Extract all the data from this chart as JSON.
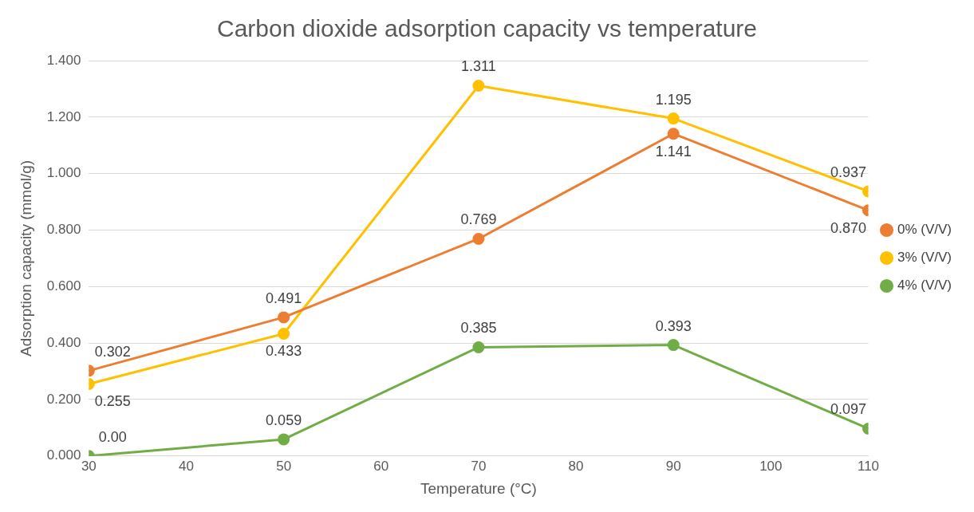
{
  "chart_data": {
    "type": "line",
    "title": "Carbon dioxide adsorption capacity vs temperature",
    "xlabel": "Temperature (°C)",
    "ylabel": "Adsorption capacity (mmol/g)",
    "x": [
      30,
      50,
      70,
      90,
      110
    ],
    "xlim": [
      30,
      110
    ],
    "xticks": [
      30,
      40,
      50,
      60,
      70,
      80,
      90,
      100,
      110
    ],
    "ylim": [
      0,
      1.4
    ],
    "yticks": [
      {
        "value": 0,
        "label": "0.000"
      },
      {
        "value": 0.2,
        "label": "0.200"
      },
      {
        "value": 0.4,
        "label": "0.400"
      },
      {
        "value": 0.6,
        "label": "0.600"
      },
      {
        "value": 0.8,
        "label": "0.800"
      },
      {
        "value": 1,
        "label": "1.000"
      },
      {
        "value": 1.2,
        "label": "1.200"
      },
      {
        "value": 1.4,
        "label": "1.400"
      }
    ],
    "series": [
      {
        "name": "0% (V/V)",
        "color": "#ed7d31",
        "values": [
          0.302,
          0.491,
          0.769,
          1.141,
          0.87
        ],
        "value_labels": [
          "0.302",
          "0.491",
          "0.769",
          "1.141",
          "0.870"
        ]
      },
      {
        "name": "3% (V/V)",
        "color": "#ffc000",
        "values": [
          0.255,
          0.433,
          1.311,
          1.195,
          0.937
        ],
        "value_labels": [
          "0.255",
          "0.433",
          "1.311",
          "1.195",
          "0.937"
        ]
      },
      {
        "name": "4% (V/V)",
        "color": "#70ad47",
        "values": [
          0,
          0.059,
          0.385,
          0.393,
          0.097
        ],
        "value_labels": [
          "0.00",
          "0.059",
          "0.385",
          "0.393",
          "0.097"
        ]
      }
    ],
    "grid": "y",
    "legend": "right",
    "marker": "circle",
    "line_style": "solid"
  }
}
